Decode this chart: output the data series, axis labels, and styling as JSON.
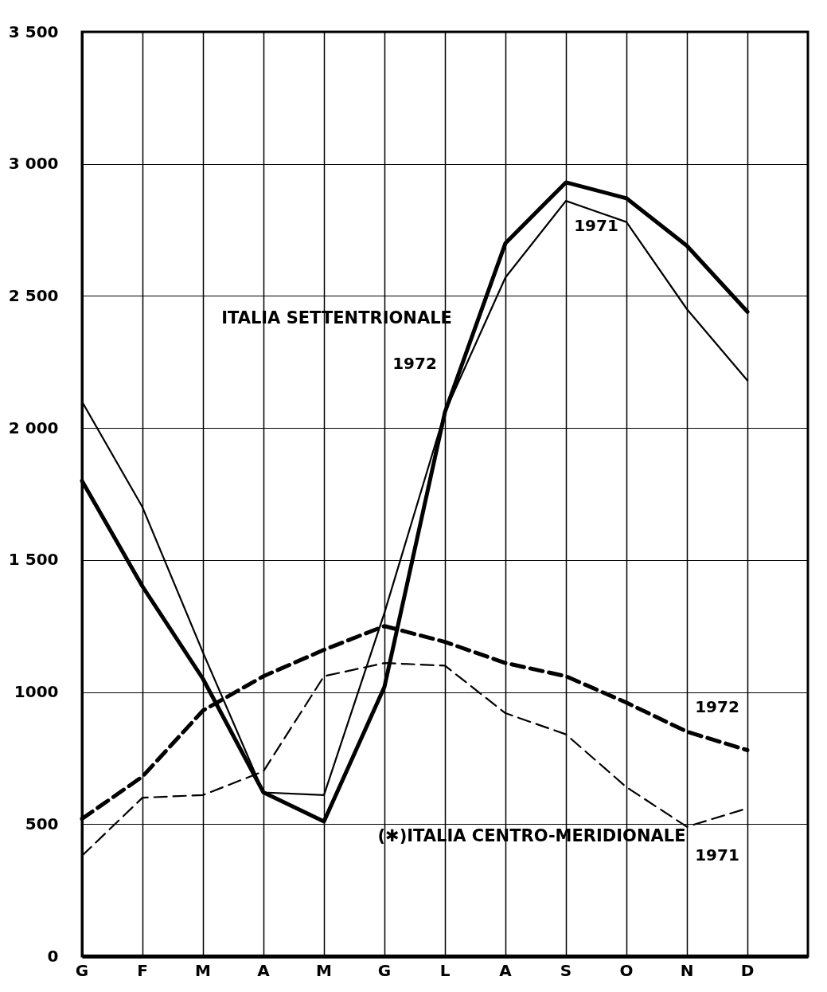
{
  "chart_data": {
    "type": "line",
    "categories": [
      "G",
      "F",
      "M",
      "A",
      "M",
      "G",
      "L",
      "A",
      "S",
      "O",
      "N",
      "D"
    ],
    "series": [
      {
        "name": "1972",
        "color": "#000000",
        "line_style": "solid",
        "values": [
          1800,
          1400,
          1050,
          620,
          510,
          1020,
          2060,
          2700,
          2930,
          2870,
          2690,
          2440
        ]
      },
      {
        "name": "1971",
        "color": "#000000",
        "line_style": "solid",
        "values": [
          2100,
          1700,
          1150,
          620,
          610,
          1300,
          2060,
          2570,
          2860,
          2780,
          2450,
          2180
        ]
      },
      {
        "name": "1972",
        "color": "#000000",
        "line_style": "dashed",
        "values": [
          520,
          680,
          930,
          1060,
          1160,
          1250,
          1190,
          1110,
          1060,
          960,
          850,
          780
        ]
      },
      {
        "name": "1971",
        "color": "#000000",
        "line_style": "dashed",
        "values": [
          380,
          600,
          610,
          700,
          1060,
          1110,
          1100,
          920,
          840,
          640,
          490,
          560
        ]
      }
    ],
    "annotations": [
      "ITALIA SETTENTRIONALE",
      "(✱)ITALIA CENTRO-MERIDIONALE"
    ],
    "ylim": [
      0,
      3500
    ],
    "yticks": [
      0,
      500,
      {
        "value": 1000,
        "label": "1000"
      },
      {
        "value": 1500,
        "label": "1 500"
      },
      {
        "value": 2000,
        "label": "2 000"
      },
      {
        "value": 2500,
        "label": "2 500"
      },
      {
        "value": 3000,
        "label": "3 000"
      },
      {
        "value": 3500,
        "label": "3 500"
      }
    ],
    "grid": true,
    "marker": "none"
  }
}
